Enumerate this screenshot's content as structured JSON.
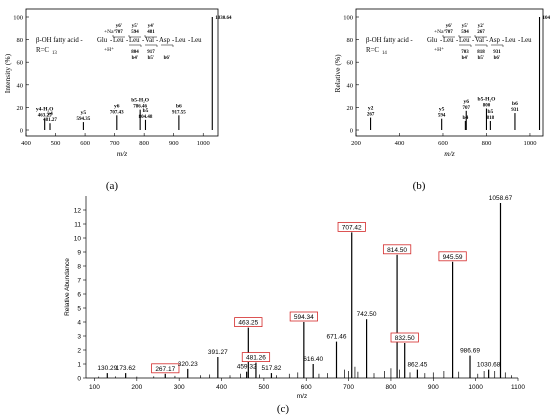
{
  "chart_data": [
    {
      "type": "bar",
      "panel_label": "(a)",
      "ylabel": "Intensity (%)",
      "xlabel": "m/z",
      "xlim": [
        400,
        1050
      ],
      "ylim": [
        0,
        100
      ],
      "xticks": [
        400,
        500,
        600,
        700,
        800,
        900,
        1000
      ],
      "yticks": [
        0,
        20,
        40,
        60,
        80,
        100
      ],
      "structure": {
        "prefix": "β-OH fatty acid - ",
        "residues": [
          "Glu",
          "Leu",
          "Leu",
          "Val",
          "Asp",
          "Leu",
          "Leu"
        ],
        "r_group": "R=C",
        "r_sub": "13",
        "na": "+Na",
        "h": "+H",
        "top_ions": [
          "y6'",
          "y5'",
          "y4'"
        ],
        "top_mz": [
          "707",
          "594",
          "481"
        ],
        "bottom_ions": [
          "b4'",
          "b5'",
          "b6'"
        ],
        "bottom_mz": [
          "804",
          "917",
          ""
        ]
      },
      "peaks": [
        {
          "x": 463.25,
          "y": 10,
          "label": "y4-H₂O",
          "mz_label": "463.25"
        },
        {
          "x": 481.27,
          "y": 6,
          "label": "y4",
          "mz_label": "481.27"
        },
        {
          "x": 594.35,
          "y": 7,
          "label": "y5",
          "mz_label": "594.35"
        },
        {
          "x": 707.43,
          "y": 13,
          "label": "y6",
          "mz_label": "707.43"
        },
        {
          "x": 786.46,
          "y": 18,
          "label": "b5-H₂O",
          "mz_label": "786.46"
        },
        {
          "x": 804.48,
          "y": 9,
          "label": "b5",
          "mz_label": "804.48"
        },
        {
          "x": 917.55,
          "y": 13,
          "label": "b6",
          "mz_label": "917.55"
        },
        {
          "x": 1030.64,
          "y": 100,
          "label": "",
          "mz_label": "1030.64"
        }
      ]
    },
    {
      "type": "bar",
      "panel_label": "(b)",
      "ylabel": "Relative (%)",
      "xlabel": "m/z",
      "xlim": [
        200,
        1060
      ],
      "ylim": [
        0,
        100
      ],
      "xticks": [
        200,
        400,
        600,
        800,
        1000
      ],
      "yticks": [
        0,
        20,
        40,
        60,
        80,
        100
      ],
      "structure": {
        "prefix": "β-OH fatty acid - ",
        "residues": [
          "Glu",
          "Leu",
          "Leu",
          "Val",
          "Asp",
          "Leu",
          "Leu"
        ],
        "r_group": "R=C",
        "r_sub": "14",
        "na": "+Na",
        "h": "+H",
        "top_ions": [
          "y6'",
          "y5'",
          "y2'"
        ],
        "top_mz": [
          "707",
          "594",
          "267"
        ],
        "bottom_ions": [
          "b4'",
          "b5'",
          "b6'"
        ],
        "bottom_mz": [
          "703",
          "818",
          "931"
        ]
      },
      "peaks": [
        {
          "x": 267,
          "y": 11,
          "label": "y2",
          "mz_label": "267"
        },
        {
          "x": 594,
          "y": 10,
          "label": "y5",
          "mz_label": "594"
        },
        {
          "x": 703,
          "y": 8,
          "label": "b4",
          "mz_label": ""
        },
        {
          "x": 707,
          "y": 17,
          "label": "y6",
          "mz_label": "707"
        },
        {
          "x": 800,
          "y": 19,
          "label": "b5-H₂O",
          "mz_label": "800"
        },
        {
          "x": 818,
          "y": 8,
          "label": "b5",
          "mz_label": "818"
        },
        {
          "x": 931,
          "y": 15,
          "label": "b6",
          "mz_label": "931"
        },
        {
          "x": 1044,
          "y": 100,
          "label": "",
          "mz_label": "1044"
        }
      ]
    },
    {
      "type": "bar",
      "panel_label": "(c)",
      "ylabel": "Relative Abundance",
      "xlabel": "m/z",
      "xlim": [
        80,
        1100
      ],
      "ylim": [
        0,
        13
      ],
      "xticks": [
        100,
        200,
        300,
        400,
        500,
        600,
        700,
        800,
        900,
        1000,
        1100
      ],
      "yticks": [
        0,
        1,
        2,
        3,
        4,
        5,
        6,
        7,
        8,
        9,
        10,
        11,
        12
      ],
      "peaks": [
        {
          "x": 130.29,
          "y": 0.35,
          "label": "130.29",
          "boxed": false
        },
        {
          "x": 173.62,
          "y": 0.35,
          "label": "173.62",
          "boxed": false
        },
        {
          "x": 267.17,
          "y": 0.3,
          "label": "267.17",
          "boxed": true
        },
        {
          "x": 320.23,
          "y": 0.65,
          "label": "320.23",
          "boxed": false
        },
        {
          "x": 391.27,
          "y": 1.5,
          "label": "391.27",
          "boxed": false
        },
        {
          "x": 459.32,
          "y": 0.45,
          "label": "459.32",
          "boxed": false
        },
        {
          "x": 463.25,
          "y": 3.6,
          "label": "463.25",
          "boxed": true
        },
        {
          "x": 481.26,
          "y": 1.1,
          "label": "481.26",
          "boxed": true
        },
        {
          "x": 517.82,
          "y": 0.35,
          "label": "517.82",
          "boxed": false
        },
        {
          "x": 594.34,
          "y": 4.0,
          "label": "594.34",
          "boxed": true
        },
        {
          "x": 616.4,
          "y": 1.0,
          "label": "616.40",
          "boxed": false
        },
        {
          "x": 671.46,
          "y": 2.6,
          "label": "671.46",
          "boxed": false
        },
        {
          "x": 707.42,
          "y": 10.4,
          "label": "707.42",
          "boxed": true
        },
        {
          "x": 742.5,
          "y": 4.2,
          "label": "742.50",
          "boxed": false
        },
        {
          "x": 814.5,
          "y": 8.8,
          "label": "814.50",
          "boxed": true
        },
        {
          "x": 832.5,
          "y": 2.5,
          "label": "832.50",
          "boxed": true
        },
        {
          "x": 862.45,
          "y": 0.6,
          "label": "862.45",
          "boxed": false
        },
        {
          "x": 945.59,
          "y": 8.3,
          "label": "945.59",
          "boxed": true
        },
        {
          "x": 986.69,
          "y": 1.6,
          "label": "986.69",
          "boxed": false
        },
        {
          "x": 1030.68,
          "y": 0.6,
          "label": "1030.68",
          "boxed": false
        },
        {
          "x": 1058.67,
          "y": 12.5,
          "label": "1058.67",
          "boxed": false
        }
      ],
      "minor_peaks": [
        {
          "x": 110,
          "y": 0.1
        },
        {
          "x": 150,
          "y": 0.12
        },
        {
          "x": 200,
          "y": 0.1
        },
        {
          "x": 240,
          "y": 0.12
        },
        {
          "x": 290,
          "y": 0.15
        },
        {
          "x": 350,
          "y": 0.2
        },
        {
          "x": 372,
          "y": 0.25
        },
        {
          "x": 420,
          "y": 0.2
        },
        {
          "x": 445,
          "y": 0.3
        },
        {
          "x": 490,
          "y": 0.25
        },
        {
          "x": 530,
          "y": 0.2
        },
        {
          "x": 560,
          "y": 0.3
        },
        {
          "x": 580,
          "y": 0.4
        },
        {
          "x": 630,
          "y": 0.3
        },
        {
          "x": 650,
          "y": 0.35
        },
        {
          "x": 690,
          "y": 0.6
        },
        {
          "x": 700,
          "y": 0.5
        },
        {
          "x": 715,
          "y": 0.8
        },
        {
          "x": 722,
          "y": 0.45
        },
        {
          "x": 760,
          "y": 0.35
        },
        {
          "x": 785,
          "y": 0.5
        },
        {
          "x": 800,
          "y": 0.7
        },
        {
          "x": 820,
          "y": 0.6
        },
        {
          "x": 845,
          "y": 0.4
        },
        {
          "x": 880,
          "y": 0.35
        },
        {
          "x": 900,
          "y": 0.4
        },
        {
          "x": 925,
          "y": 0.5
        },
        {
          "x": 960,
          "y": 0.45
        },
        {
          "x": 1005,
          "y": 0.3
        },
        {
          "x": 1020,
          "y": 0.5
        },
        {
          "x": 1045,
          "y": 0.5
        },
        {
          "x": 1070,
          "y": 0.4
        },
        {
          "x": 1085,
          "y": 0.2
        }
      ]
    }
  ],
  "colors": {
    "box": "#d42a2a",
    "axis": "#000000"
  }
}
